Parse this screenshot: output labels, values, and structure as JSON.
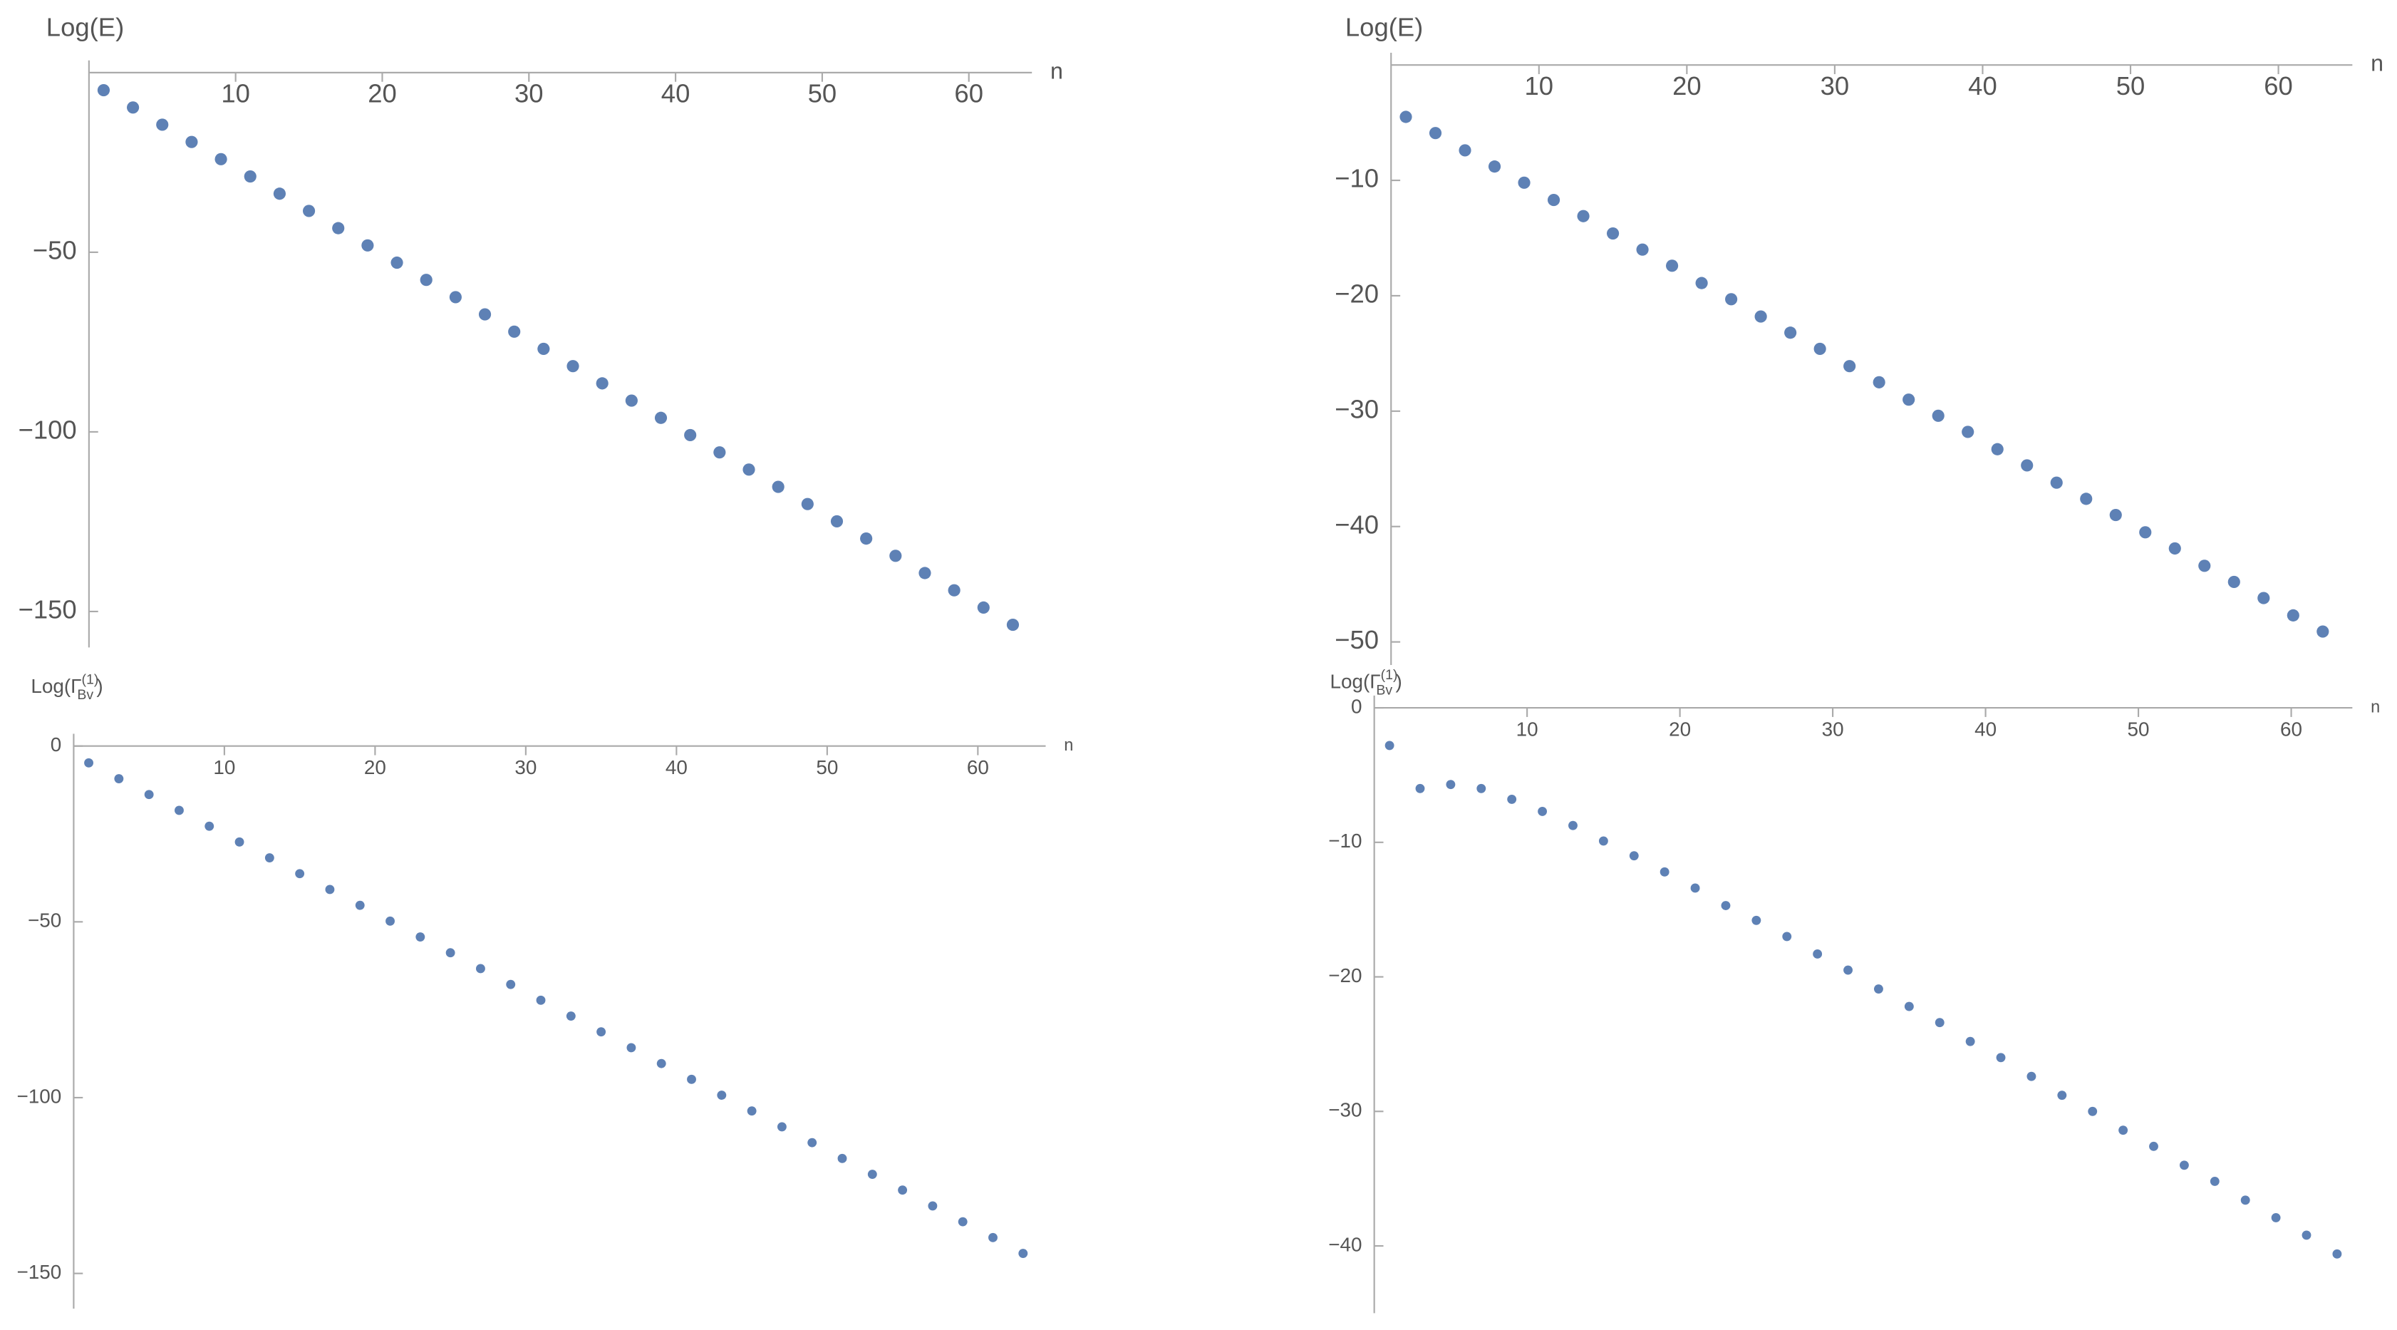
{
  "chart_data": [
    {
      "type": "scatter",
      "y_label": "Log(E)",
      "x_label": "n",
      "x": [
        1,
        3,
        5,
        7,
        9,
        11,
        13,
        15,
        17,
        19,
        21,
        23,
        25,
        27,
        29,
        31,
        33,
        35,
        37,
        39,
        41,
        43,
        45,
        47,
        49,
        51,
        53,
        55,
        57,
        59,
        61,
        63
      ],
      "series": [
        {
          "color": "#5e81b5",
          "values": [
            -4.9,
            -9.7,
            -14.5,
            -19.3,
            -24.1,
            -28.9,
            -33.7,
            -38.5,
            -43.3,
            -48.1,
            -52.9,
            -57.7,
            -62.5,
            -67.3,
            -72.1,
            -76.9,
            -81.7,
            -86.5,
            -91.3,
            -96.1,
            -100.9,
            -105.7,
            -110.5,
            -115.3,
            -120.1,
            -124.9,
            -129.7,
            -134.5,
            -139.3,
            -144.1,
            -148.9,
            -153.7
          ]
        }
      ],
      "xlim": [
        0,
        64.3
      ],
      "ylim": [
        -160,
        0
      ],
      "xticks": [
        10,
        20,
        30,
        40,
        50,
        60
      ],
      "yticks": [
        {
          "value": -50,
          "label": "−50"
        },
        {
          "value": -100,
          "label": "−100"
        },
        {
          "value": -150,
          "label": "−150"
        }
      ]
    },
    {
      "type": "scatter",
      "y_label": "Log(E)",
      "x_label": "n",
      "x": [
        1,
        3,
        5,
        7,
        9,
        11,
        13,
        15,
        17,
        19,
        21,
        23,
        25,
        27,
        29,
        31,
        33,
        35,
        37,
        39,
        41,
        43,
        45,
        47,
        49,
        51,
        53,
        55,
        57,
        59,
        61,
        63
      ],
      "series": [
        {
          "color": "#5e81b5",
          "values": [
            -4.5,
            -5.9,
            -7.4,
            -8.8,
            -10.2,
            -11.7,
            -13.1,
            -14.6,
            -16.0,
            -17.4,
            -18.9,
            -20.3,
            -21.8,
            -23.2,
            -24.6,
            -26.1,
            -27.5,
            -29.0,
            -30.4,
            -31.8,
            -33.3,
            -34.7,
            -36.2,
            -37.6,
            -39.0,
            -40.5,
            -41.9,
            -43.4,
            -44.8,
            -46.2,
            -47.7,
            -49.1
          ]
        }
      ],
      "xlim": [
        0,
        65
      ],
      "ylim": [
        -52,
        0
      ],
      "xticks": [
        10,
        20,
        30,
        40,
        50,
        60
      ],
      "yticks": [
        {
          "value": -10,
          "label": "−10"
        },
        {
          "value": -20,
          "label": "−20"
        },
        {
          "value": -30,
          "label": "−30"
        },
        {
          "value": -40,
          "label": "−40"
        },
        {
          "value": -50,
          "label": "−50"
        }
      ]
    },
    {
      "type": "scatter",
      "y_label": {
        "prefix": "Log(Γ",
        "sup": "(1)",
        "sub": "Bv",
        "suffix": ")"
      },
      "x_label": "n",
      "x": [
        1,
        3,
        5,
        7,
        9,
        11,
        13,
        15,
        17,
        19,
        21,
        23,
        25,
        27,
        29,
        31,
        33,
        35,
        37,
        39,
        41,
        43,
        45,
        47,
        49,
        51,
        53,
        55,
        57,
        59,
        61,
        63
      ],
      "series": [
        {
          "color": "#5e81b5",
          "values": [
            -4.8,
            -9.3,
            -13.8,
            -18.3,
            -22.8,
            -27.3,
            -31.8,
            -36.3,
            -40.8,
            -45.3,
            -49.8,
            -54.3,
            -58.8,
            -63.3,
            -67.8,
            -72.3,
            -76.8,
            -81.3,
            -85.8,
            -90.3,
            -94.8,
            -99.3,
            -103.8,
            -108.3,
            -112.8,
            -117.3,
            -121.8,
            -126.3,
            -130.8,
            -135.3,
            -139.8,
            -144.3
          ]
        }
      ],
      "xlim": [
        0,
        64.5
      ],
      "ylim": [
        -160,
        0
      ],
      "xticks": [
        10,
        20,
        30,
        40,
        50,
        60
      ],
      "yticks": [
        0,
        {
          "value": -50,
          "label": "−50"
        },
        {
          "value": -100,
          "label": "−100"
        },
        {
          "value": -150,
          "label": "−150"
        }
      ]
    },
    {
      "type": "scatter",
      "y_label": {
        "prefix": "Log(Γ",
        "sup": "(1)",
        "sub": "Bv",
        "suffix": ")"
      },
      "x_label": "n",
      "x": [
        1,
        3,
        5,
        7,
        9,
        11,
        13,
        15,
        17,
        19,
        21,
        23,
        25,
        27,
        29,
        31,
        33,
        35,
        37,
        39,
        41,
        43,
        45,
        47,
        49,
        51,
        53,
        55,
        57,
        59,
        61,
        63
      ],
      "series": [
        {
          "color": "#5e81b5",
          "values": [
            -2.8,
            -6.0,
            -5.7,
            -6.0,
            -6.8,
            -7.7,
            -8.75,
            -9.9,
            -11.0,
            -12.2,
            -13.4,
            -14.7,
            -15.8,
            -17.0,
            -18.3,
            -19.5,
            -20.9,
            -22.2,
            -23.4,
            -24.8,
            -26.0,
            -27.4,
            -28.8,
            -30.0,
            -31.4,
            -32.6,
            -34.0,
            -35.2,
            -36.6,
            -37.9,
            -39.2,
            -40.6
          ]
        }
      ],
      "xlim": [
        0,
        64
      ],
      "ylim": [
        -45,
        0
      ],
      "xticks": [
        10,
        20,
        30,
        40,
        50,
        60
      ],
      "yticks": [
        0,
        {
          "value": -10,
          "label": "−10"
        },
        {
          "value": -20,
          "label": "−20"
        },
        {
          "value": -30,
          "label": "−30"
        },
        {
          "value": -40,
          "label": "−40"
        }
      ]
    }
  ]
}
